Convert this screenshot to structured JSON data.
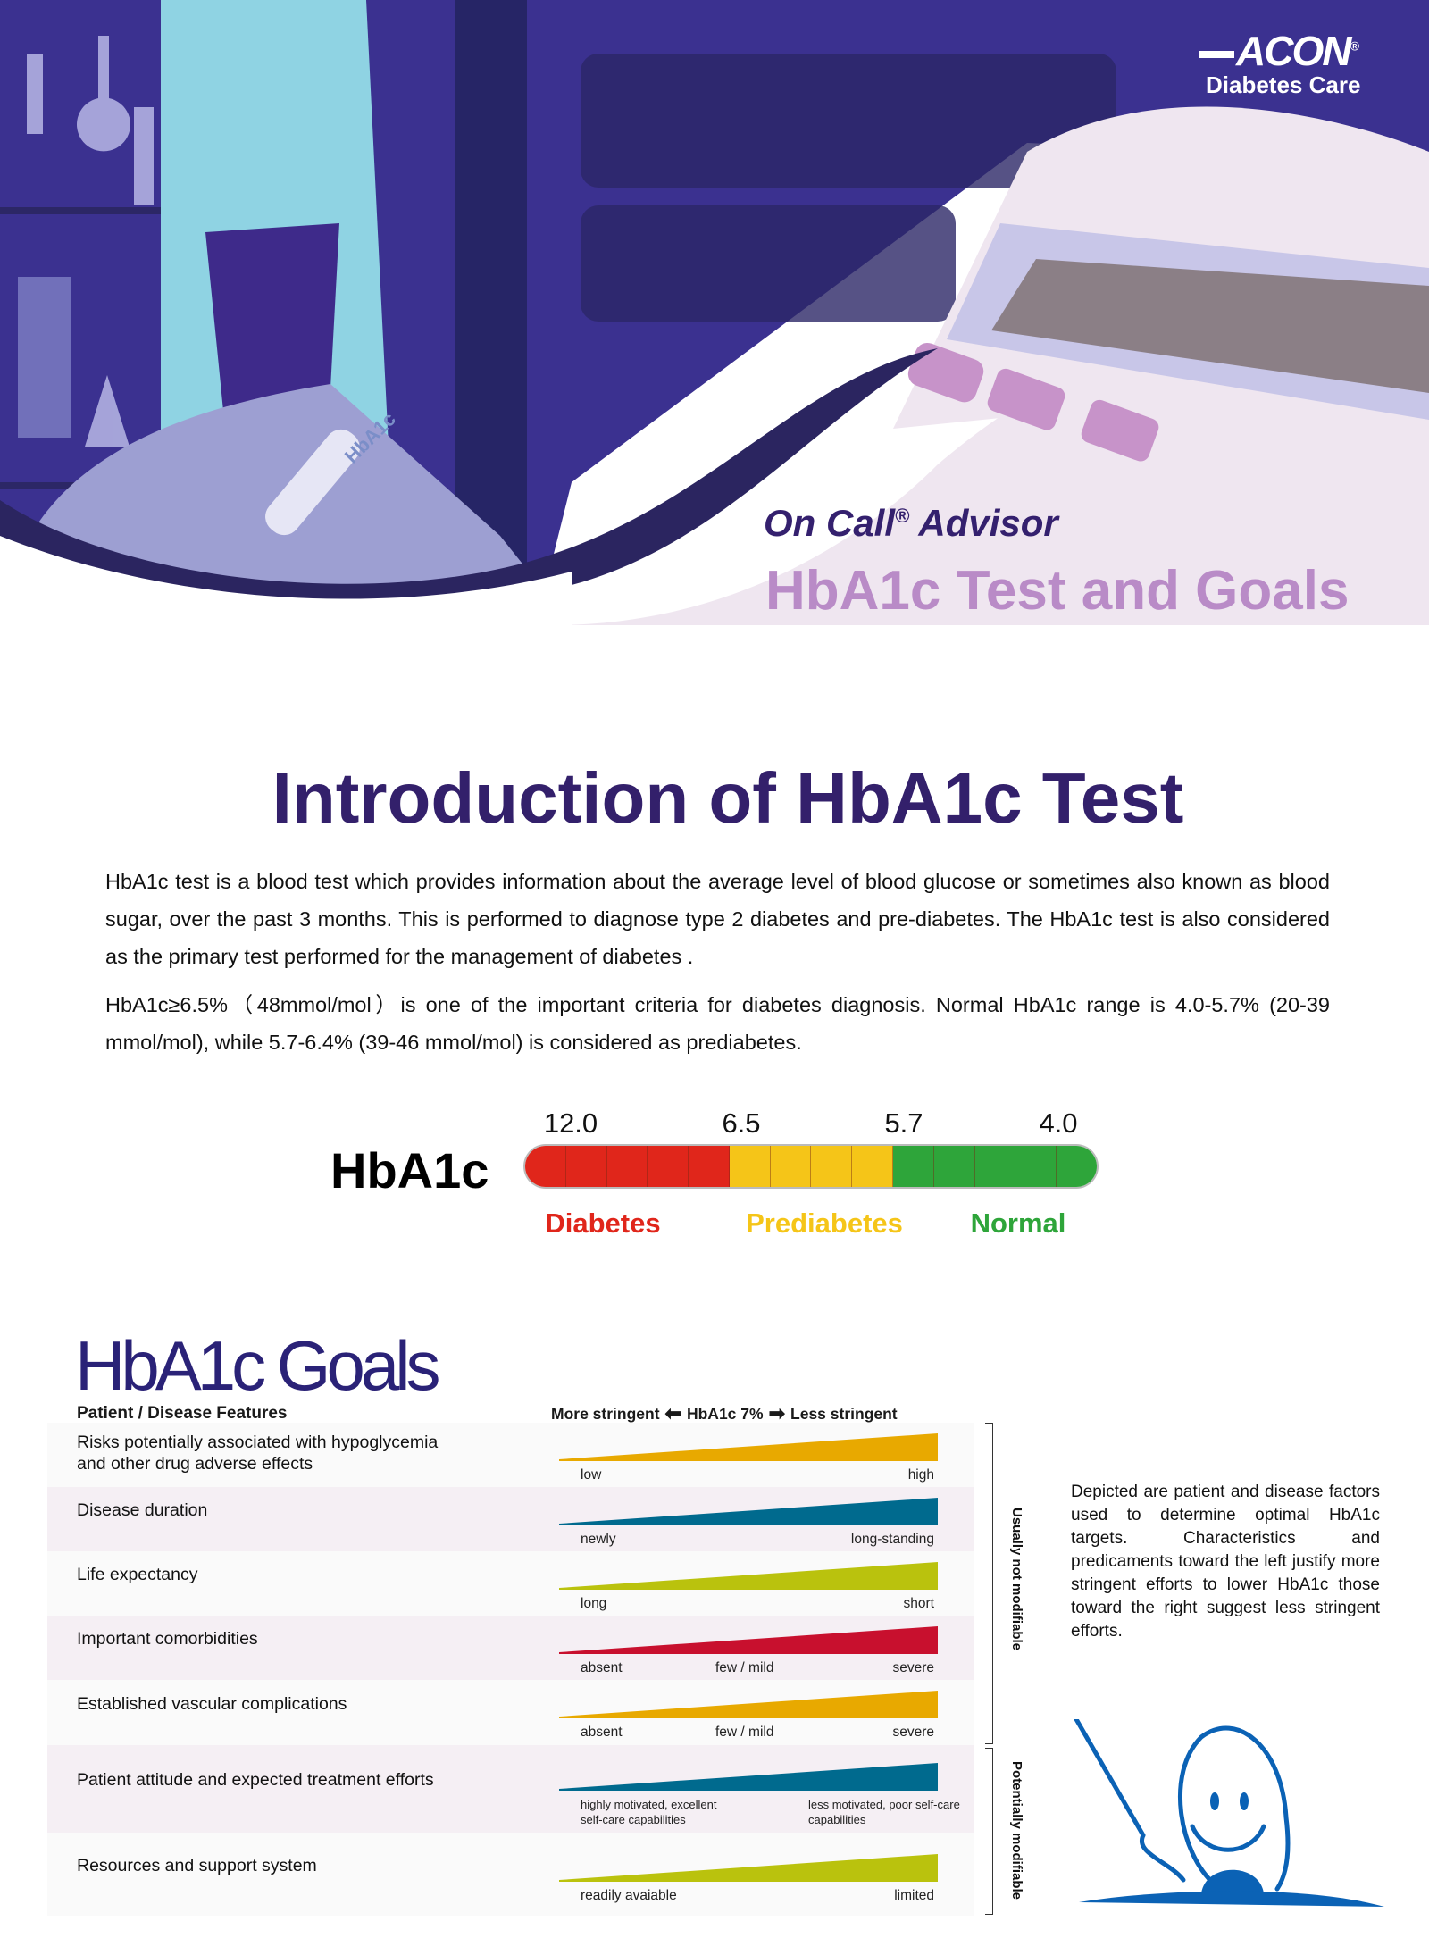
{
  "header": {
    "logo": {
      "brand": "ACON",
      "registered": "®",
      "tagline": "Diabetes Care"
    },
    "series": "On Call",
    "series_mark": "®",
    "series_suffix": "Advisor",
    "title": "HbA1c Test and Goals",
    "tube_label": "HbA1c"
  },
  "intro": {
    "title": "Introduction of HbA1c Test",
    "paragraph1": "HbA1c test is a blood test which provides information about the average level of blood glucose or sometimes also known as blood sugar, over the past 3 months. This is performed to diagnose type 2 diabetes and pre-diabetes. The HbA1c test is also considered as the primary test performed for the management of diabetes .",
    "paragraph2": "HbA1c≥6.5%（48mmol/mol）is one of the important criteria for diabetes diagnosis. Normal HbA1c range is 4.0-5.7% (20-39 mmol/mol), while 5.7-6.4% (39-46 mmol/mol) is considered as prediabetes."
  },
  "scale": {
    "label": "HbA1c",
    "ticks": [
      "12.0",
      "6.5",
      "5.7",
      "4.0"
    ],
    "categories": [
      {
        "name": "Diabetes",
        "color": "#e0261b",
        "segments": 5
      },
      {
        "name": "Prediabetes",
        "color": "#f5c518",
        "segments": 4
      },
      {
        "name": "Normal",
        "color": "#2ea53a",
        "segments": 5
      }
    ]
  },
  "goals": {
    "title": "HbA1c Goals",
    "col_features": "Patient / Disease Features",
    "more": "More stringent",
    "center": "HbA1c 7%",
    "less": "Less stringent",
    "rows": [
      {
        "feature": "Risks potentially associated with hypoglycemia and other drug adverse effects",
        "color": "#e8a900",
        "labels": [
          "low",
          "high"
        ]
      },
      {
        "feature": "Disease duration",
        "color": "#006a8e",
        "labels": [
          "newly",
          "long-standing"
        ]
      },
      {
        "feature": "Life expectancy",
        "color": "#bac20d",
        "labels": [
          "long",
          "short"
        ]
      },
      {
        "feature": "Important comorbidities",
        "color": "#c8102e",
        "labels": [
          "absent",
          "few / mild",
          "severe"
        ]
      },
      {
        "feature": "Established vascular complications",
        "color": "#e8a900",
        "labels": [
          "absent",
          "few / mild",
          "severe"
        ]
      },
      {
        "feature": "Patient attitude and expected treatment efforts",
        "color": "#006a8e",
        "labels": [
          "highly motivated, excellent self-care capabilities",
          "less motivated, poor self-care capabilities"
        ]
      },
      {
        "feature": "Resources and support system",
        "color": "#bac20d",
        "labels": [
          "readily avaiable",
          "limited"
        ]
      }
    ],
    "group1": "Usually not modifiable",
    "group2": "Potentially modifiable",
    "side_note": "Depicted are patient and disease factors used to determine optimal HbA1c targets. Characteristics and predicaments toward the left justify more stringent efforts to lower HbA1c those toward the right suggest less stringent efforts."
  },
  "colors": {
    "brand_purple": "#3b3190",
    "title_purple": "#33206b",
    "title_pink": "#b98bc7",
    "mascot_blue": "#0b62b5"
  }
}
